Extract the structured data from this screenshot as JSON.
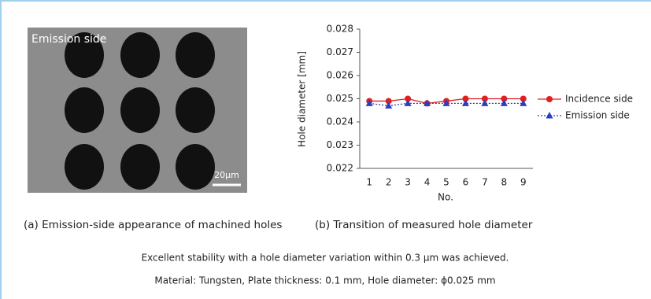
{
  "photo": {
    "label": "Emission side",
    "scale_bar": "20μm"
  },
  "chart_data": {
    "type": "line",
    "y_label": "Hole diameter [mm]",
    "x_label": "No.",
    "categories": [
      "1",
      "2",
      "3",
      "4",
      "5",
      "6",
      "7",
      "8",
      "9"
    ],
    "series": [
      {
        "name": "Incidence side",
        "color": "#e02020",
        "marker": "circle",
        "line_style": "solid",
        "values": [
          0.0249,
          0.0249,
          0.025,
          0.0248,
          0.0249,
          0.025,
          0.025,
          0.025,
          0.025
        ]
      },
      {
        "name": "Emission side",
        "color": "#2a3fc0",
        "marker": "triangle",
        "line_style": "dotted",
        "values": [
          0.0248,
          0.0247,
          0.0248,
          0.0248,
          0.0248,
          0.0248,
          0.0248,
          0.0248,
          0.0248
        ]
      }
    ],
    "ylim": [
      0.022,
      0.028
    ],
    "yticks": [
      0.022,
      0.023,
      0.024,
      0.025,
      0.026,
      0.027,
      0.028
    ],
    "legend": "right"
  },
  "captions": [
    "(a) Emission-side appearance of machined holes",
    "(b) Transition of measured hole diameter"
  ],
  "notes": [
    "Excellent stability with a hole diameter variation within 0.3 μm was achieved.",
    "Material: Tungsten, Plate thickness: 0.1 mm, Hole diameter: ϕ0.025 mm"
  ]
}
